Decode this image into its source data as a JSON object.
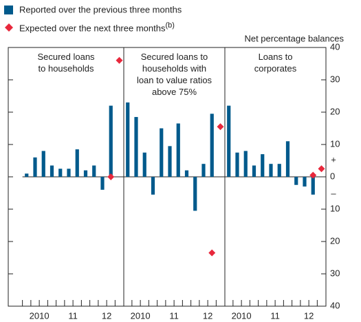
{
  "chart_data": [
    {
      "type": "bar",
      "title": "Secured loans\nto households",
      "y_label": "Net percentage balances",
      "annotations": [
        "+",
        "–"
      ],
      "ylim": [
        -40,
        40
      ],
      "yticks": [
        {
          "value": -40,
          "label": "40"
        },
        {
          "value": -30,
          "label": "30"
        },
        {
          "value": -20,
          "label": "20"
        },
        {
          "value": -10,
          "label": "10"
        },
        0,
        10,
        20,
        30,
        40
      ],
      "categories": [
        null,
        "2010",
        null,
        null,
        null,
        "11",
        null,
        null,
        null,
        "12",
        null,
        null
      ],
      "series": [
        {
          "name": "Reported over the previous three months",
          "color": "#005a8c",
          "values": [
            1,
            6,
            8,
            3.5,
            2.5,
            2.5,
            8.5,
            2,
            3.5,
            -4,
            22,
            null
          ]
        },
        {
          "name": "Expected over the next three months",
          "footnote": "(b)",
          "color": "#e8283c",
          "values": [
            null,
            null,
            null,
            null,
            null,
            null,
            null,
            null,
            null,
            null,
            0,
            36
          ]
        }
      ]
    },
    {
      "type": "bar",
      "title": "Secured loans to\nhouseholds with\nloan to value ratios\nabove 75%",
      "categories": [
        null,
        "2010",
        null,
        null,
        null,
        "11",
        null,
        null,
        null,
        "12",
        null,
        null
      ],
      "series": [
        {
          "name": "Reported over the previous three months",
          "color": "#005a8c",
          "values": [
            23,
            18.5,
            7.5,
            -5.5,
            15,
            9.5,
            16.5,
            2,
            -10.5,
            4,
            19.5,
            null
          ]
        },
        {
          "name": "Expected over the next three months",
          "color": "#e8283c",
          "values": [
            null,
            null,
            null,
            null,
            null,
            null,
            null,
            null,
            null,
            null,
            -23.5,
            15.5
          ]
        }
      ]
    },
    {
      "type": "bar",
      "title": "Loans to\ncorporates",
      "categories": [
        null,
        "2010",
        null,
        null,
        null,
        "11",
        null,
        null,
        null,
        "12",
        null,
        null
      ],
      "series": [
        {
          "name": "Reported over the previous three months",
          "color": "#005a8c",
          "values": [
            22,
            7.5,
            8,
            3.5,
            7,
            4,
            4,
            11,
            -2.5,
            -3,
            -5.5,
            null
          ]
        },
        {
          "name": "Expected over the next three months",
          "color": "#e8283c",
          "values": [
            null,
            null,
            null,
            null,
            null,
            null,
            null,
            null,
            null,
            null,
            0.5,
            2.5
          ]
        }
      ]
    }
  ]
}
